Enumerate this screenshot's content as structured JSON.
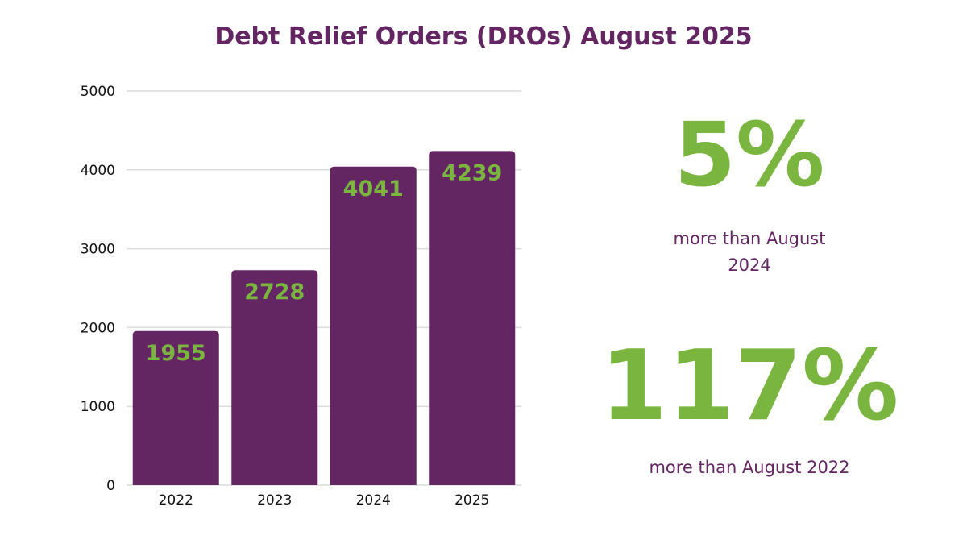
{
  "chart_data": {
    "type": "bar",
    "title": "Debt Relief Orders (DROs) August 2025",
    "categories": [
      "2022",
      "2023",
      "2024",
      "2025"
    ],
    "values": [
      1955,
      2728,
      4041,
      4239
    ],
    "yticks": [
      0,
      1000,
      2000,
      3000,
      4000,
      5000
    ],
    "ylim": [
      0,
      5000
    ],
    "xlabel": "",
    "ylabel": "",
    "grid": true,
    "colors": {
      "bar": "#632663",
      "label": "#7ab53f"
    }
  },
  "stats": [
    {
      "value": "5%",
      "caption_line1": "more than August",
      "caption_line2": "2024"
    },
    {
      "value": "117%",
      "caption_line1": "more than August 2022"
    }
  ]
}
